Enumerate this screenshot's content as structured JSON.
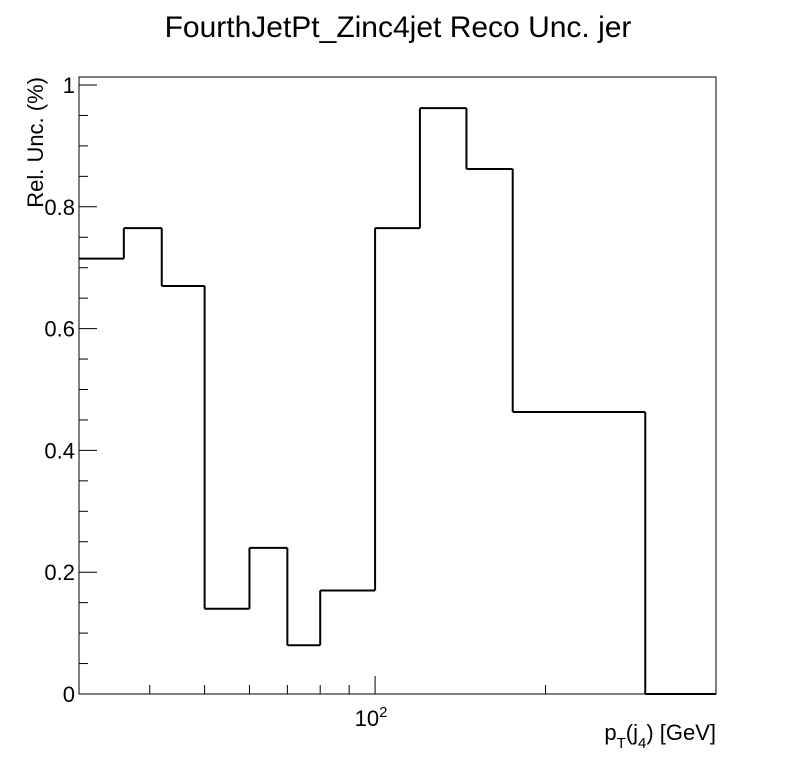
{
  "chart_data": {
    "type": "histogram-step",
    "title": "FourthJetPt_Zinc4jet Reco Unc. jer",
    "ylabel": "Rel. Unc. (%)",
    "xlabel": {
      "main": "p",
      "sub1": "T",
      "mid": "(j",
      "sub2": "4",
      "end": ") [GeV]"
    },
    "x_scale": "log",
    "xlim": [
      30,
      400
    ],
    "ylim": [
      0,
      1
    ],
    "x_tick_labels": [
      {
        "value": 100,
        "base": "10",
        "exp": "2"
      }
    ],
    "y_tick_labels": [
      {
        "value": 0,
        "label": "0"
      },
      {
        "value": 0.2,
        "label": "0.2"
      },
      {
        "value": 0.4,
        "label": "0.4"
      },
      {
        "value": 0.6,
        "label": "0.6"
      },
      {
        "value": 0.8,
        "label": "0.8"
      },
      {
        "value": 1,
        "label": "1"
      }
    ],
    "bin_edges": [
      30,
      36,
      42,
      50,
      60,
      70,
      80,
      100,
      120,
      145,
      175,
      300,
      400
    ],
    "values": [
      0.715,
      0.765,
      0.67,
      0.14,
      0.24,
      0.08,
      0.17,
      0.765,
      0.962,
      0.862,
      0.463,
      0.0
    ],
    "grid": false,
    "legend": "none",
    "line_color": "#000000"
  }
}
